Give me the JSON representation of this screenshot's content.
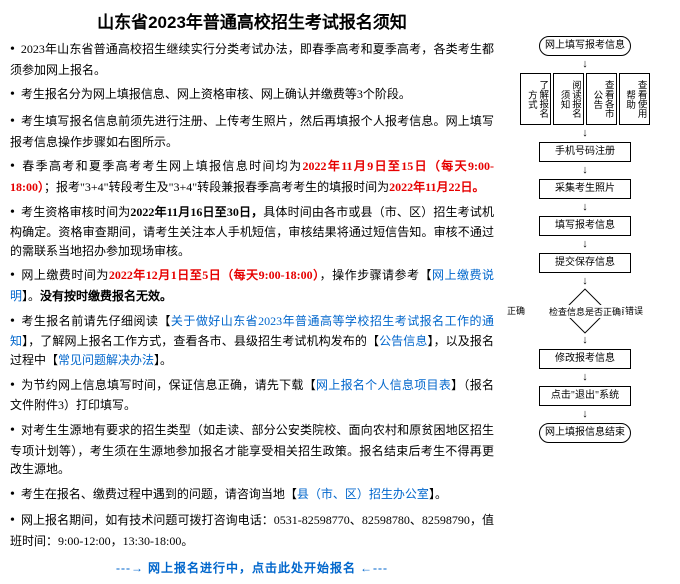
{
  "title": "山东省2023年普通高校招生考试报名须知",
  "bullets": {
    "b1a": "2023年山东省普通高校招生继续实行分类考试办法，即春季高考和夏季高考，各类考生都须参加网上报名。",
    "b2": "考生报名分为网上填报信息、网上资格审核、网上确认并缴费等3个阶段。",
    "b3": "考生填写报名信息前须先进行注册、上传考生照片，然后再填报个人报考信息。网上填写报考信息操作步骤如右图所示。",
    "b4a": "春季高考和夏季高考考生网上填报信息时间均为",
    "b4b": "2022年11月9日至15日（每天9:00-18:00）",
    "b4c": "；报考\"3+4\"转段考生及\"3+4\"转段兼报春季高考考生的填报时间为",
    "b4d": "2022年11月22日。",
    "b5a": "考生资格审核时间为",
    "b5b": "2022年11月16日至30日，",
    "b5c": "具体时间由各市或县（市、区）招生考试机构确定。资格审查期间，请考生关注本人手机短信，审核结果将通过短信告知。审核不通过的需联系当地招办参加现场审核。",
    "b6a": "网上缴费时间为",
    "b6b": "2022年12月1日至5日（每天9:00-18:00）",
    "b6c": "，操作步骤请参考【",
    "b6d": "网上缴费说明",
    "b6e": "】。",
    "b6f": "没有按时缴费报名无效。",
    "b7a": "考生报名前请先仔细阅读【",
    "b7b": "关于做好山东省2023年普通高等学校招生考试报名工作的通知",
    "b7c": "】，了解网上报名工作方式，查看各市、县级招生考试机构发布的【",
    "b7d": "公告信息",
    "b7e": "】，以及报名过程中【",
    "b7f": "常见问题解决办法",
    "b7g": "】。",
    "b8a": "为节约网上信息填写时间，保证信息正确，请先下载【",
    "b8b": "网上报名个人信息项目表",
    "b8c": "】（报名文件附件3）打印填写。",
    "b9": "对考生生源地有要求的招生类型（如走读、部分公安类院校、面向农村和原贫困地区招生专项计划等），考生须在生源地参加报名才能享受相关招生政策。报名结束后考生不得再更改生源地。",
    "b10a": "考生在报名、缴费过程中遇到的问题，请咨询当地【",
    "b10b": "县（市、区）招生办公室",
    "b10c": "】。",
    "b11": "网上报名期间，如有技术问题可拨打咨询电话：0531-82598770、82598780、82598790，值班时间：9:00-12:00，13:30-18:00。"
  },
  "cta": "---→ 网上报名进行中，点击此处开始报名 ←---",
  "flow": {
    "start": "网上填写报考信息",
    "row": [
      "了解报名方式",
      "阅读报名须知",
      "查看各市公告",
      "查看使用帮助"
    ],
    "s1": "手机号码注册",
    "s2": "采集考生照片",
    "s3": "填写报考信息",
    "s4": "提交保存信息",
    "dq": "检查信息是否正确",
    "dl": "正确",
    "dr": "有错误",
    "s5": "修改报考信息",
    "s6": "点击\"退出\"系统",
    "end": "网上填报信息结束",
    "colors": {
      "border": "#000000",
      "bg": "#ffffff",
      "text": "#000000"
    }
  }
}
